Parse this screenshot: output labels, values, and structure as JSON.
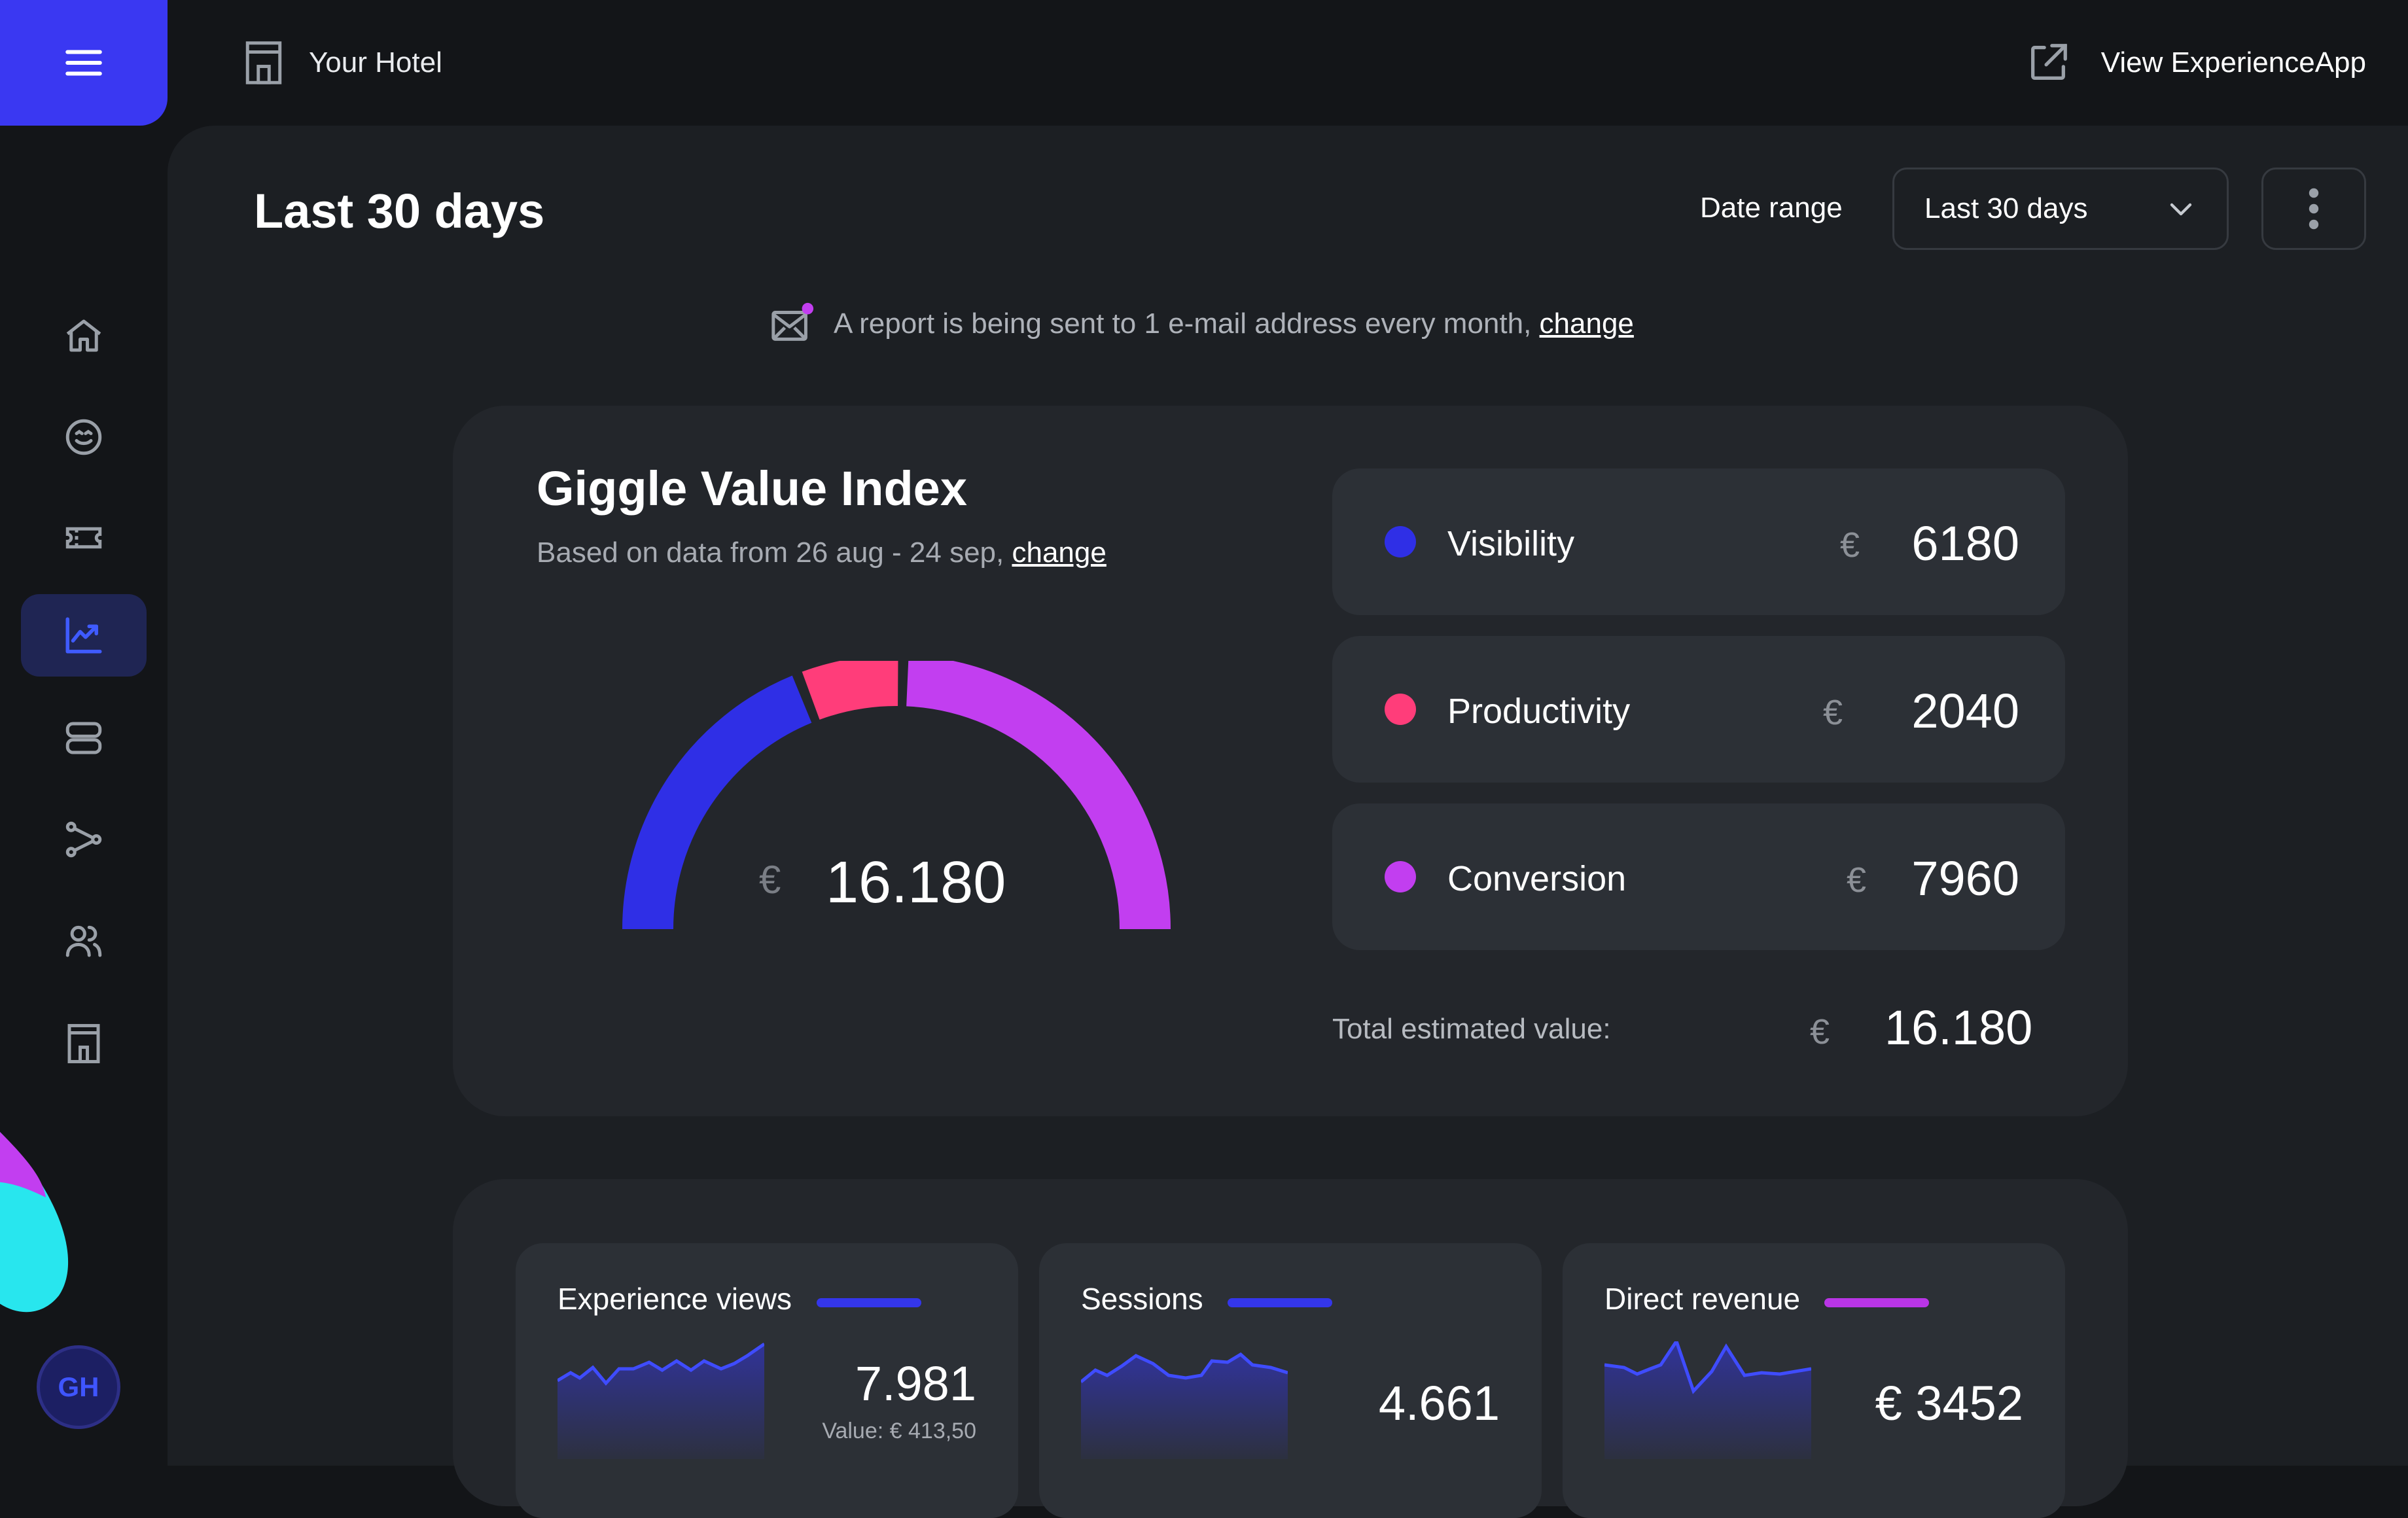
{
  "topbar": {
    "hotel_label": "Your Hotel",
    "view_app_label": "View ExperienceApp"
  },
  "sidebar": {
    "items": [
      {
        "name": "home-icon",
        "active": false
      },
      {
        "name": "smiley-icon",
        "active": false
      },
      {
        "name": "ticket-icon",
        "active": false
      },
      {
        "name": "chart-line-icon",
        "active": true
      },
      {
        "name": "database-icon",
        "active": false
      },
      {
        "name": "share-nodes-icon",
        "active": false
      },
      {
        "name": "users-icon",
        "active": false
      },
      {
        "name": "building-icon",
        "active": false
      }
    ],
    "avatar_initials": "GH"
  },
  "header": {
    "title": "Last 30 days",
    "date_range_label": "Date range",
    "date_range_value": "Last 30 days"
  },
  "notice": {
    "text": "A report is being sent to 1 e-mail address every month,",
    "link": "change"
  },
  "gvi": {
    "title": "Giggle Value Index",
    "subtitle": "Based on data from 26 aug - 24 sep,",
    "subtitle_link": "change",
    "currency": "€",
    "total": "16.180",
    "metrics": [
      {
        "name": "Visibility",
        "currency": "€",
        "value": "6180",
        "color": "#2f2fe6"
      },
      {
        "name": "Productivity",
        "currency": "€",
        "value": "2040",
        "color": "#ff3d7a"
      },
      {
        "name": "Conversion",
        "currency": "€",
        "value": "7960",
        "color": "#c23ef0"
      }
    ],
    "total_label": "Total estimated value:",
    "total_currency": "€",
    "total_value": "16.180"
  },
  "stats": [
    {
      "title": "Experience views",
      "value": "7.981",
      "sub": "Value: € 413,50",
      "color": "#3436ea"
    },
    {
      "title": "Sessions",
      "value": "4.661",
      "color": "#3436ea"
    },
    {
      "title": "Direct revenue",
      "value": "€ 3452",
      "color": "#b935e6"
    }
  ],
  "colors": {
    "accent": "#3a38f2",
    "visibility": "#2f2fe6",
    "productivity": "#ff3d7a",
    "conversion": "#c23ef0"
  }
}
